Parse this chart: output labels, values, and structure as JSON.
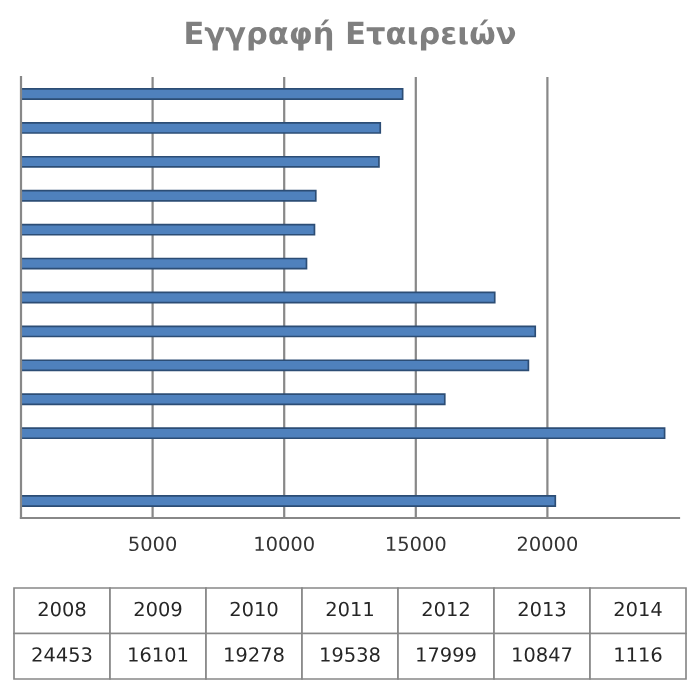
{
  "chart_data": {
    "type": "bar",
    "orientation": "horizontal",
    "title": "Εγγραφή Εταιρειών",
    "categories": [
      null,
      null,
      null,
      null,
      null,
      null,
      null,
      null,
      null,
      null,
      null,
      null,
      null
    ],
    "values": [
      14500,
      13650,
      13600,
      11200,
      11150,
      10847,
      17999,
      19538,
      19278,
      16101,
      24453,
      null,
      20300
    ],
    "color": "#4f81bd",
    "xlim": [
      0,
      25000
    ],
    "xticks": [
      5000,
      10000,
      15000,
      20000
    ],
    "grid": "x",
    "annotations": [
      "2008",
      "2009",
      "2010",
      "2011",
      "2012",
      "2013",
      "2014",
      "24453",
      "16101",
      "19278",
      "19538",
      "17999",
      "10847",
      "1116"
    ]
  }
}
